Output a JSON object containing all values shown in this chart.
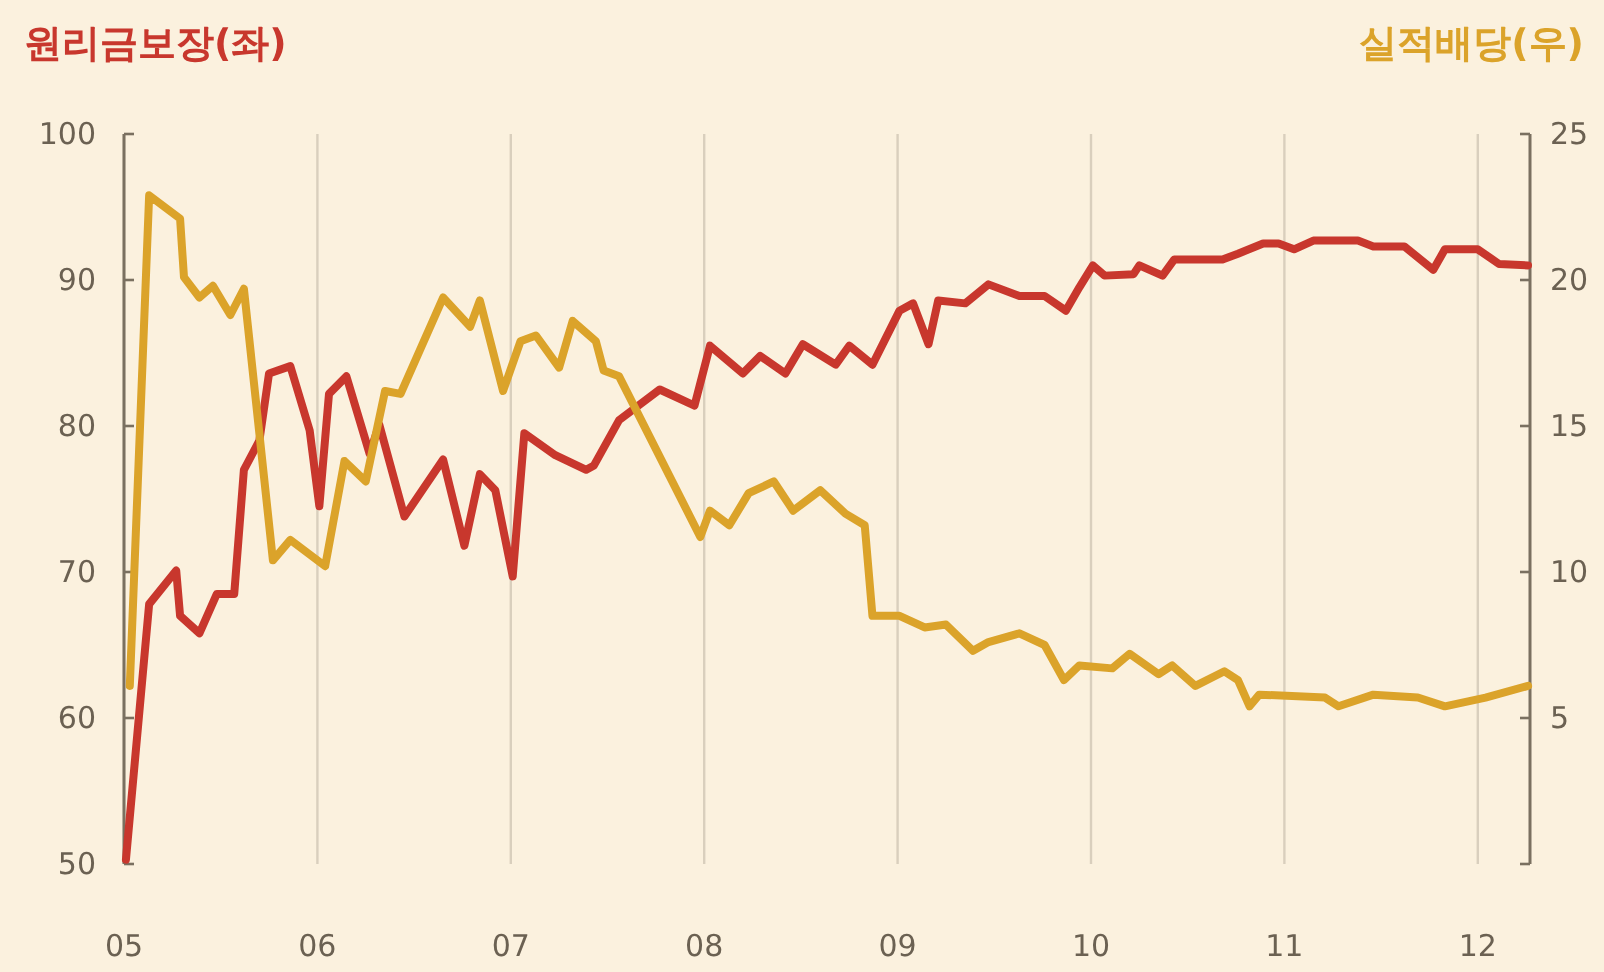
{
  "chart_data": {
    "type": "line",
    "ylabel": "원리금보장(좌)",
    "y2label": "실적배당(우)",
    "xlim": [
      2005,
      2012.27
    ],
    "xticks": [
      {
        "value": 2005,
        "label": "05"
      },
      {
        "value": 2006,
        "label": "06"
      },
      {
        "value": 2007,
        "label": "07"
      },
      {
        "value": 2008,
        "label": "08"
      },
      {
        "value": 2009,
        "label": "09"
      },
      {
        "value": 2010,
        "label": "10"
      },
      {
        "value": 2011,
        "label": "11"
      },
      {
        "value": 2012,
        "label": "12"
      }
    ],
    "ylim": [
      50,
      100
    ],
    "yticks": [
      50,
      60,
      70,
      80,
      90,
      100
    ],
    "y2lim": [
      0,
      25
    ],
    "y2ticks": [
      {
        "value": 0,
        "label": null
      },
      5,
      10,
      15,
      20,
      25
    ],
    "grid": "x",
    "marker": "none",
    "line_style": "solid",
    "series": [
      {
        "color": "#c8372d",
        "x": [
          2005.01,
          2005.13,
          2005.27,
          2005.29,
          2005.39,
          2005.48,
          2005.57,
          2005.62,
          2005.7,
          2005.75,
          2005.86,
          2005.96,
          2006.01,
          2006.06,
          2006.15,
          2006.27,
          2006.32,
          2006.45,
          2006.65,
          2006.76,
          2006.84,
          2006.92,
          2007.01,
          2007.07,
          2007.23,
          2007.39,
          2007.43,
          2007.56,
          2007.77,
          2007.95,
          2008.03,
          2008.2,
          2008.29,
          2008.42,
          2008.51,
          2008.68,
          2008.75,
          2008.87,
          2009.01,
          2009.08,
          2009.16,
          2009.21,
          2009.35,
          2009.47,
          2009.63,
          2009.76,
          2009.87,
          2009.94,
          2010.01,
          2010.07,
          2010.22,
          2010.25,
          2010.37,
          2010.43,
          2010.68,
          2010.76,
          2010.89,
          2010.97,
          2011.05,
          2011.15,
          2011.38,
          2011.46,
          2011.62,
          2011.77,
          2011.83,
          2012.0,
          2012.11,
          2012.26
        ],
        "values": [
          50.3,
          67.8,
          70.1,
          67.0,
          65.8,
          68.5,
          68.5,
          77.0,
          79.0,
          83.6,
          84.1,
          79.7,
          74.5,
          82.2,
          83.4,
          78.1,
          80.1,
          73.8,
          77.7,
          71.8,
          76.7,
          75.6,
          69.7,
          79.5,
          78.0,
          77.0,
          77.3,
          80.4,
          82.5,
          81.4,
          85.5,
          83.6,
          84.8,
          83.6,
          85.6,
          84.2,
          85.5,
          84.2,
          87.9,
          88.4,
          85.6,
          88.6,
          88.4,
          89.7,
          88.9,
          88.9,
          87.9,
          89.5,
          91.0,
          90.3,
          90.4,
          91.0,
          90.3,
          91.4,
          91.4,
          91.8,
          92.5,
          92.5,
          92.1,
          92.7,
          92.7,
          92.3,
          92.3,
          90.7,
          92.1,
          92.1,
          91.1,
          91.0
        ]
      },
      {
        "color": "#dba32a",
        "axis": "y2",
        "x": [
          2005.03,
          2005.13,
          2005.29,
          2005.31,
          2005.39,
          2005.46,
          2005.55,
          2005.62,
          2005.77,
          2005.86,
          2006.04,
          2006.14,
          2006.25,
          2006.35,
          2006.43,
          2006.65,
          2006.79,
          2006.84,
          2006.96,
          2007.05,
          2007.13,
          2007.25,
          2007.32,
          2007.44,
          2007.48,
          2007.56,
          2007.98,
          2008.03,
          2008.13,
          2008.23,
          2008.36,
          2008.46,
          2008.6,
          2008.73,
          2008.83,
          2008.87,
          2009.01,
          2009.14,
          2009.25,
          2009.39,
          2009.47,
          2009.63,
          2009.76,
          2009.86,
          2009.94,
          2010.11,
          2010.2,
          2010.35,
          2010.42,
          2010.54,
          2010.69,
          2010.76,
          2010.82,
          2010.87,
          2011.21,
          2011.28,
          2011.46,
          2011.69,
          2011.83,
          2012.04,
          2012.26
        ],
        "values": [
          6.1,
          22.9,
          22.1,
          20.1,
          19.4,
          19.8,
          18.8,
          19.7,
          10.4,
          11.1,
          10.2,
          13.8,
          13.1,
          16.2,
          16.1,
          19.4,
          18.4,
          19.3,
          16.2,
          17.9,
          18.1,
          17.0,
          18.6,
          17.9,
          16.9,
          16.7,
          11.2,
          12.1,
          11.6,
          12.7,
          13.1,
          12.1,
          12.8,
          12.0,
          11.6,
          8.5,
          8.5,
          8.1,
          8.2,
          7.3,
          7.6,
          7.9,
          7.5,
          6.3,
          6.8,
          6.7,
          7.2,
          6.5,
          6.8,
          6.1,
          6.6,
          6.3,
          5.4,
          5.8,
          5.7,
          5.4,
          5.8,
          5.7,
          5.4,
          5.7,
          6.1
        ]
      }
    ]
  }
}
